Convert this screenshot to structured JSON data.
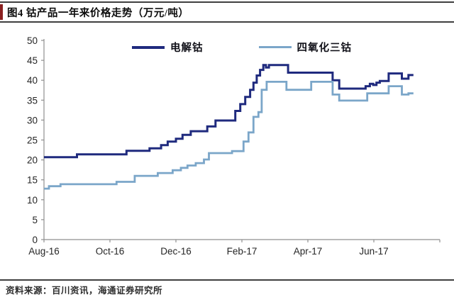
{
  "header": {
    "title": "图4 钴产品一年来价格走势（万元/吨）"
  },
  "footer": {
    "source": "资料来源：百川资讯，海通证券研究所"
  },
  "colors": {
    "series_dark": "#1f2a7e",
    "series_light": "#7ba6c9",
    "title_marker": "#8a1f1f",
    "rule": "#3f3f3f",
    "axis": "#8f8f8f",
    "tick_text": "#262626"
  },
  "chart_data": {
    "type": "line",
    "line_style": "step",
    "title": "钴产品一年来价格走势（万元/吨）",
    "unit": "万元/吨",
    "grid": false,
    "legend_position": "top-center",
    "ylim": [
      0,
      50
    ],
    "yticks": [
      0,
      5,
      10,
      15,
      20,
      25,
      30,
      35,
      40,
      45,
      50
    ],
    "x_range_months": [
      0,
      12
    ],
    "xticks": [
      {
        "m": 0,
        "label": "Aug-16"
      },
      {
        "m": 2,
        "label": "Oct-16"
      },
      {
        "m": 4,
        "label": "Dec-16"
      },
      {
        "m": 6,
        "label": "Feb-17"
      },
      {
        "m": 8,
        "label": "Apr-17"
      },
      {
        "m": 10,
        "label": "Jun-17"
      }
    ],
    "series": [
      {
        "name": "电解钴",
        "color": "#1f2a7e",
        "points": [
          [
            0,
            20.7
          ],
          [
            1.0,
            21.4
          ],
          [
            2.5,
            22.3
          ],
          [
            3.2,
            22.9
          ],
          [
            3.55,
            23.7
          ],
          [
            3.75,
            24.6
          ],
          [
            4.0,
            25.3
          ],
          [
            4.2,
            26.3
          ],
          [
            4.45,
            27.2
          ],
          [
            4.95,
            28.4
          ],
          [
            5.2,
            29.9
          ],
          [
            5.8,
            32.3
          ],
          [
            5.95,
            34.0
          ],
          [
            6.1,
            35.8
          ],
          [
            6.25,
            37.6
          ],
          [
            6.35,
            39.4
          ],
          [
            6.45,
            41.2
          ],
          [
            6.55,
            42.6
          ],
          [
            6.65,
            43.8
          ],
          [
            6.73,
            43.2
          ],
          [
            6.82,
            43.8
          ],
          [
            7.4,
            41.9
          ],
          [
            8.75,
            40.0
          ],
          [
            8.95,
            37.9
          ],
          [
            9.75,
            38.5
          ],
          [
            9.88,
            39.1
          ],
          [
            9.98,
            38.8
          ],
          [
            10.08,
            39.4
          ],
          [
            10.18,
            39.8
          ],
          [
            10.45,
            41.7
          ],
          [
            10.85,
            40.4
          ],
          [
            11.05,
            41.3
          ],
          [
            11.2,
            41.3
          ]
        ]
      },
      {
        "name": "四氧化三钴",
        "color": "#7ba6c9",
        "points": [
          [
            0,
            12.8
          ],
          [
            0.15,
            13.4
          ],
          [
            0.5,
            13.9
          ],
          [
            2.2,
            14.5
          ],
          [
            2.75,
            16.0
          ],
          [
            3.45,
            16.7
          ],
          [
            3.9,
            17.4
          ],
          [
            4.15,
            18.0
          ],
          [
            4.35,
            18.6
          ],
          [
            4.6,
            19.2
          ],
          [
            4.85,
            20.1
          ],
          [
            5.0,
            21.7
          ],
          [
            5.7,
            22.2
          ],
          [
            6.05,
            24.6
          ],
          [
            6.2,
            26.9
          ],
          [
            6.35,
            30.8
          ],
          [
            6.5,
            32.0
          ],
          [
            6.6,
            37.6
          ],
          [
            6.75,
            39.6
          ],
          [
            7.35,
            37.6
          ],
          [
            8.1,
            39.6
          ],
          [
            8.75,
            36.4
          ],
          [
            8.95,
            34.9
          ],
          [
            9.8,
            36.7
          ],
          [
            10.45,
            38.5
          ],
          [
            10.85,
            36.4
          ],
          [
            11.05,
            36.7
          ],
          [
            11.2,
            36.7
          ]
        ]
      }
    ]
  }
}
